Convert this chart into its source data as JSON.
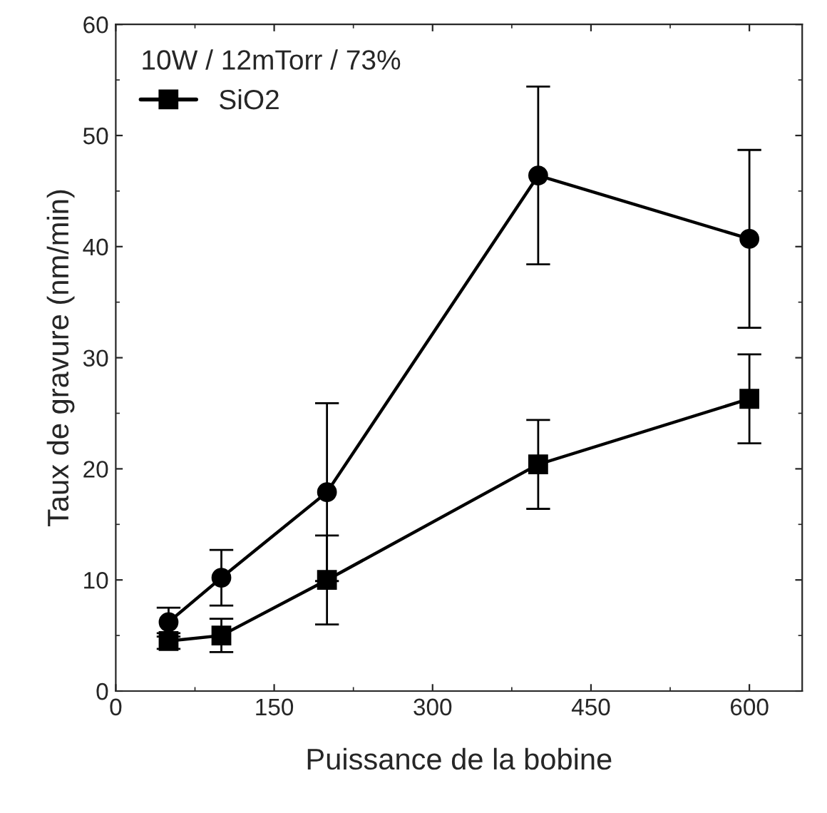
{
  "chart_data": {
    "type": "line",
    "xlabel": "Puissance de la bobine",
    "ylabel": "Taux de gravure (nm/min)",
    "legend_title": "10W / 12mTorr / 73%",
    "xlim": [
      0,
      650
    ],
    "xticks": [
      0,
      150,
      300,
      450,
      600
    ],
    "ylim": [
      0,
      60
    ],
    "yticks": [
      0,
      10,
      20,
      30,
      40,
      50,
      60
    ],
    "grid": false,
    "legend": "top left",
    "line_style": "solid",
    "series": [
      {
        "name": "SiO2",
        "color": "#000000",
        "marker": "square",
        "x": [
          50,
          100,
          200,
          400,
          600
        ],
        "values": [
          4.5,
          5,
          10,
          20.4,
          26.3
        ],
        "errors": [
          0.7,
          1.5,
          4,
          4,
          4
        ]
      },
      {
        "color": "#000000",
        "marker": "circle",
        "x": [
          50,
          100,
          200,
          400,
          600
        ],
        "values": [
          6.2,
          10.2,
          17.9,
          46.4,
          40.7
        ],
        "errors": [
          1.3,
          2.5,
          8,
          8,
          8
        ]
      }
    ]
  }
}
